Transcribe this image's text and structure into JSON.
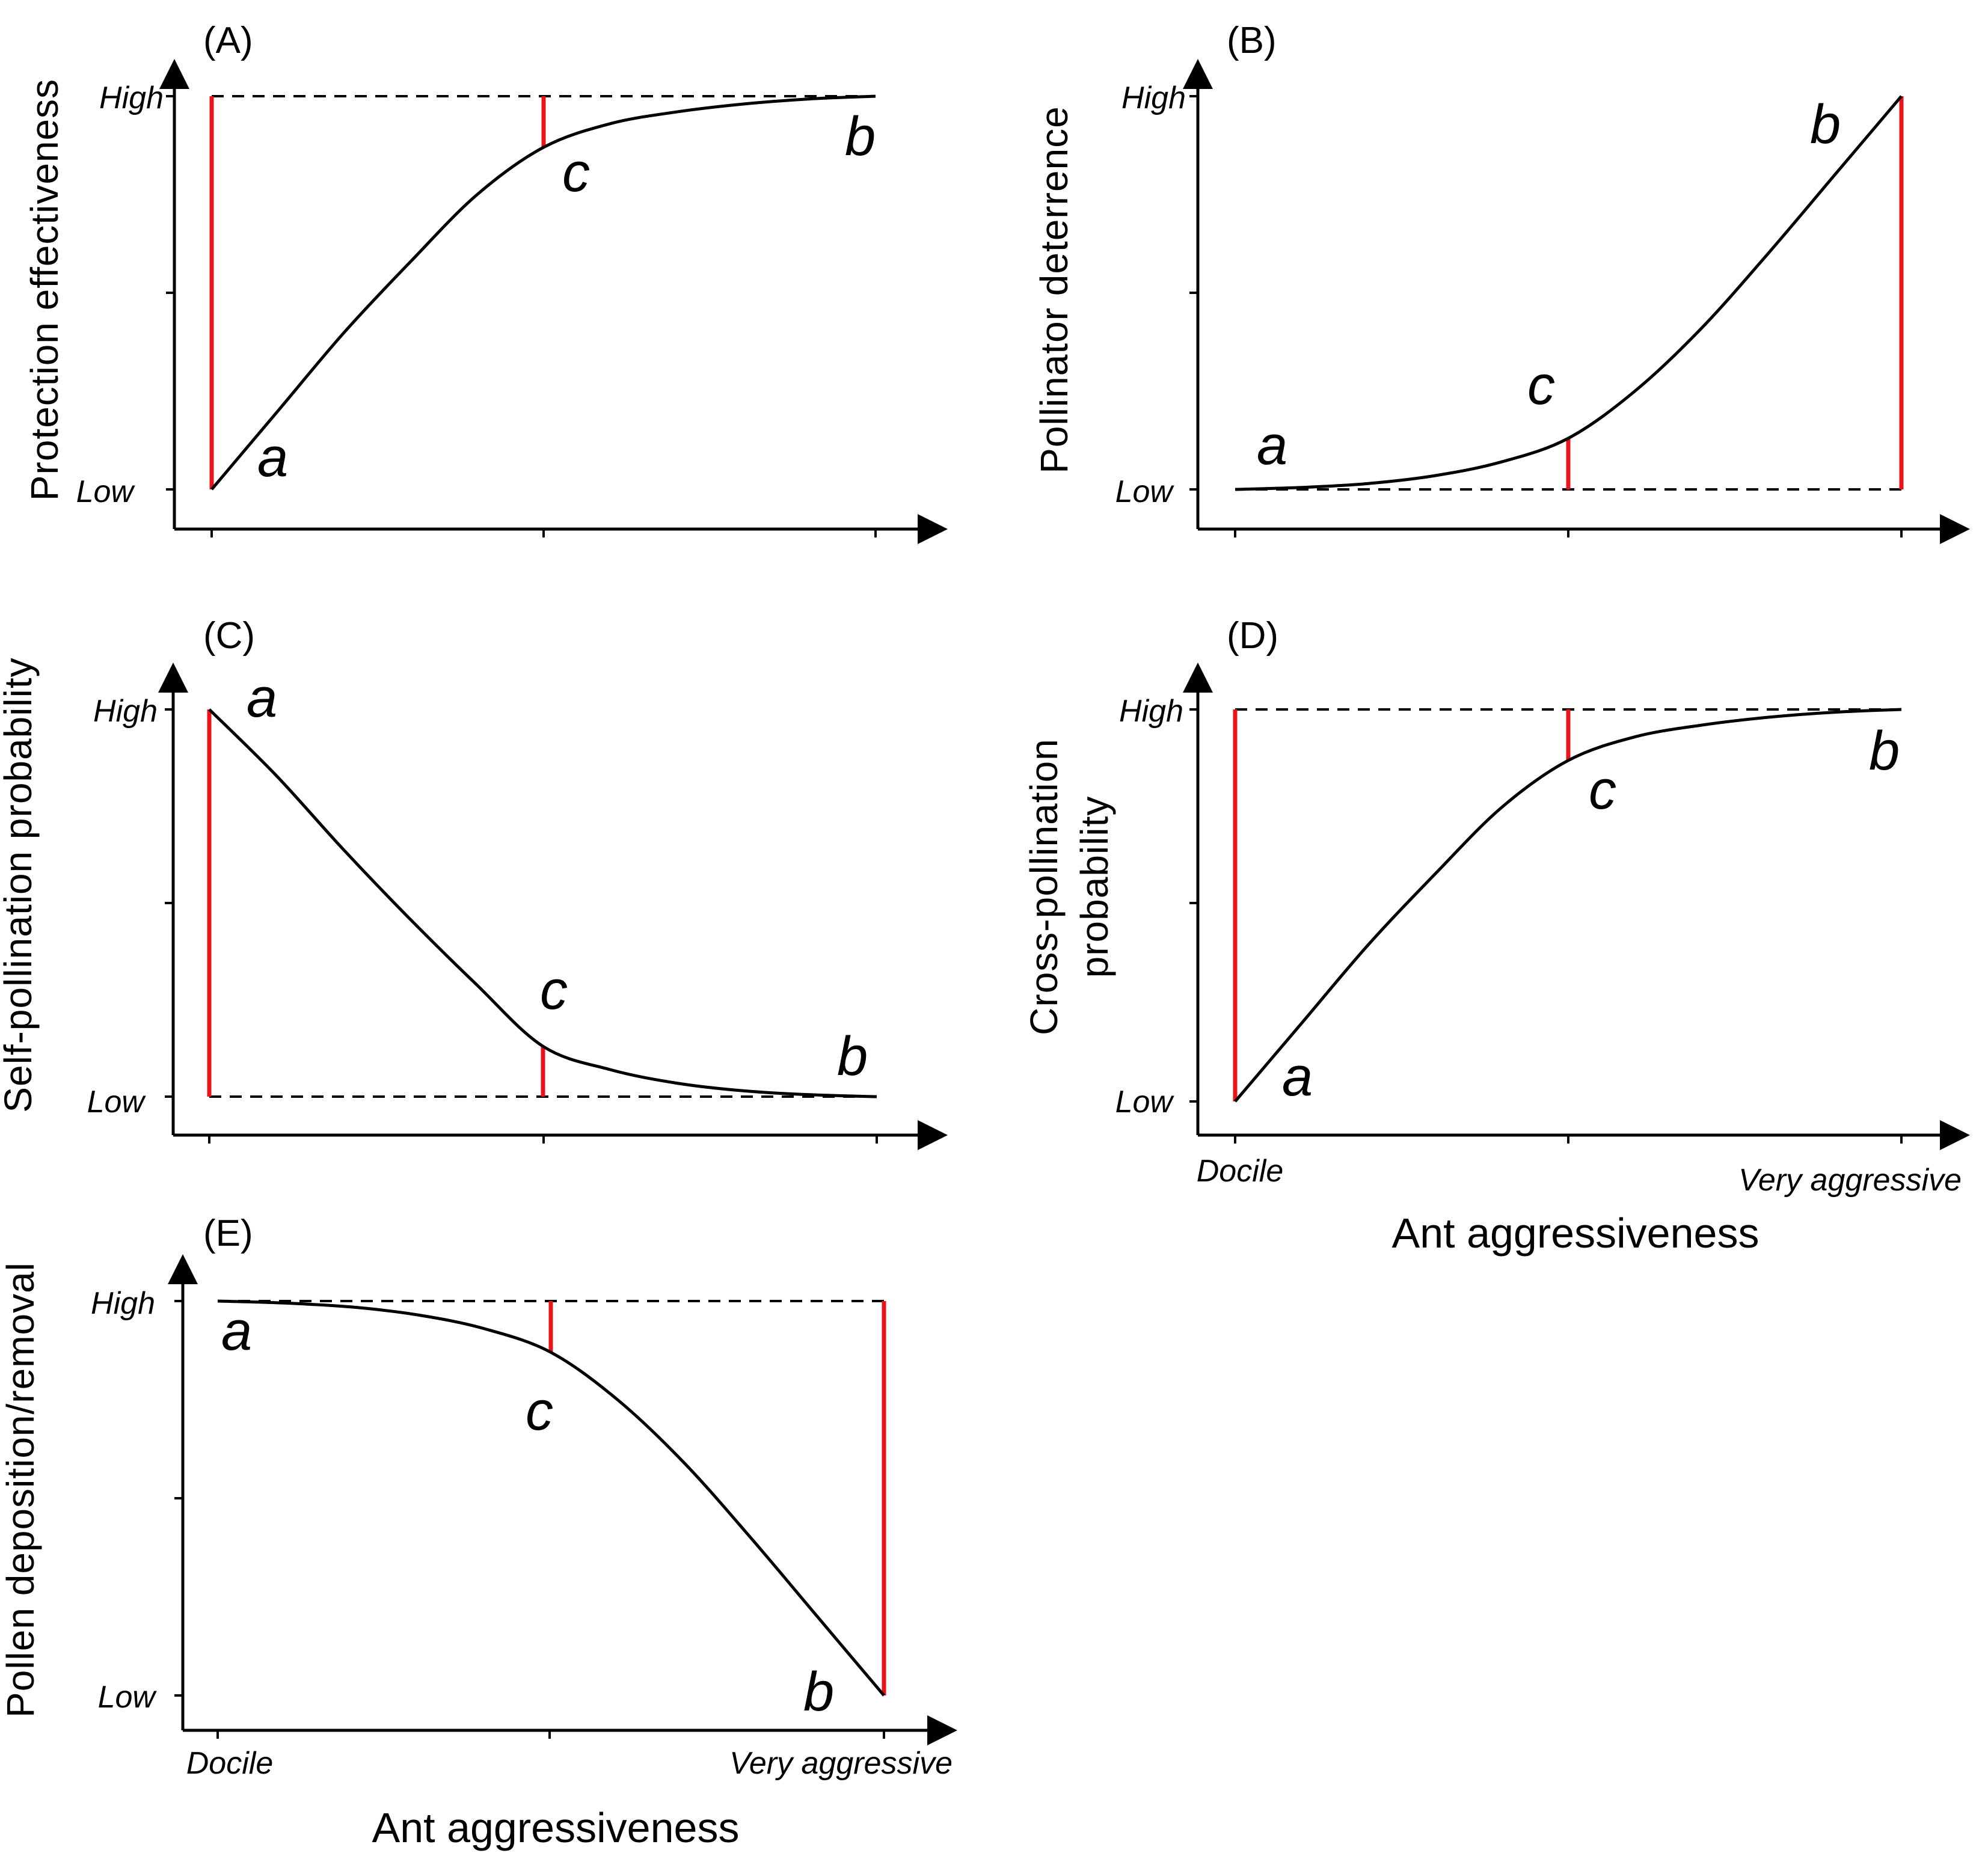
{
  "colors": {
    "axis": "#000000",
    "curve": "#000000",
    "marker": "#e8141a",
    "dashed": "#000000"
  },
  "chart_data": [
    {
      "type": "line",
      "panel_label": "(A)",
      "ylabel": "Protection effectiveness",
      "y_level_labels": {
        "low": "Low",
        "high": "High"
      },
      "xlabel": "",
      "x_tick_labels": {
        "left": "",
        "right": ""
      },
      "xlim": [
        0,
        1
      ],
      "ylim": [
        0,
        1
      ],
      "curve_shape": "saturating-increase",
      "x": [
        0.0,
        0.1,
        0.2,
        0.3,
        0.4,
        0.5,
        0.6,
        0.7,
        0.8,
        0.9,
        1.0
      ],
      "y": [
        0.0,
        0.2,
        0.4,
        0.58,
        0.75,
        0.87,
        0.93,
        0.96,
        0.98,
        0.993,
        1.0
      ],
      "reference_level": "high",
      "points": [
        {
          "name": "a",
          "x": 0.0,
          "y": 0.0
        },
        {
          "name": "c",
          "x": 0.5,
          "y": 0.87
        },
        {
          "name": "b",
          "x": 1.0,
          "y": 1.0
        }
      ],
      "red_markers": [
        {
          "x": 0.0,
          "from": 0.0,
          "to": 1.0
        },
        {
          "x": 0.5,
          "from": 0.87,
          "to": 1.0
        }
      ]
    },
    {
      "type": "line",
      "panel_label": "(B)",
      "ylabel": "Pollinator deterrence",
      "y_level_labels": {
        "low": "Low",
        "high": "High"
      },
      "xlabel": "",
      "x_tick_labels": {
        "left": "",
        "right": ""
      },
      "xlim": [
        0,
        1
      ],
      "ylim": [
        0,
        1
      ],
      "curve_shape": "accelerating-increase",
      "x": [
        0.0,
        0.1,
        0.2,
        0.3,
        0.4,
        0.5,
        0.6,
        0.7,
        0.8,
        0.9,
        1.0
      ],
      "y": [
        0.0,
        0.005,
        0.015,
        0.035,
        0.07,
        0.13,
        0.25,
        0.41,
        0.6,
        0.8,
        1.0
      ],
      "reference_level": "low",
      "points": [
        {
          "name": "a",
          "x": 0.0,
          "y": 0.0
        },
        {
          "name": "c",
          "x": 0.5,
          "y": 0.13
        },
        {
          "name": "b",
          "x": 1.0,
          "y": 1.0
        }
      ],
      "red_markers": [
        {
          "x": 0.5,
          "from": 0.0,
          "to": 0.13
        },
        {
          "x": 1.0,
          "from": 0.0,
          "to": 1.0
        }
      ]
    },
    {
      "type": "line",
      "panel_label": "(C)",
      "ylabel": "Self-pollination probability",
      "y_level_labels": {
        "low": "Low",
        "high": "High"
      },
      "xlabel": "",
      "x_tick_labels": {
        "left": "",
        "right": ""
      },
      "xlim": [
        0,
        1
      ],
      "ylim": [
        0,
        1
      ],
      "curve_shape": "decelerating-decrease",
      "x": [
        0.0,
        0.1,
        0.2,
        0.3,
        0.4,
        0.5,
        0.6,
        0.7,
        0.8,
        0.9,
        1.0
      ],
      "y": [
        1.0,
        0.83,
        0.64,
        0.46,
        0.29,
        0.13,
        0.07,
        0.035,
        0.015,
        0.005,
        0.0
      ],
      "reference_level": "low",
      "points": [
        {
          "name": "a",
          "x": 0.0,
          "y": 1.0
        },
        {
          "name": "c",
          "x": 0.5,
          "y": 0.13
        },
        {
          "name": "b",
          "x": 1.0,
          "y": 0.0
        }
      ],
      "red_markers": [
        {
          "x": 0.0,
          "from": 0.0,
          "to": 1.0
        },
        {
          "x": 0.5,
          "from": 0.0,
          "to": 0.13
        }
      ]
    },
    {
      "type": "line",
      "panel_label": "(D)",
      "ylabel": "Cross-pollination probability",
      "ylabel_lines": [
        "Cross-pollination",
        "probability"
      ],
      "y_level_labels": {
        "low": "Low",
        "high": "High"
      },
      "xlabel": "Ant aggressiveness",
      "x_tick_labels": {
        "left": "Docile",
        "right": "Very aggressive"
      },
      "xlim": [
        0,
        1
      ],
      "ylim": [
        0,
        1
      ],
      "curve_shape": "saturating-increase",
      "x": [
        0.0,
        0.1,
        0.2,
        0.3,
        0.4,
        0.5,
        0.6,
        0.7,
        0.8,
        0.9,
        1.0
      ],
      "y": [
        0.0,
        0.2,
        0.4,
        0.58,
        0.75,
        0.87,
        0.93,
        0.96,
        0.98,
        0.993,
        1.0
      ],
      "reference_level": "high",
      "points": [
        {
          "name": "a",
          "x": 0.0,
          "y": 0.0
        },
        {
          "name": "c",
          "x": 0.5,
          "y": 0.87
        },
        {
          "name": "b",
          "x": 1.0,
          "y": 1.0
        }
      ],
      "red_markers": [
        {
          "x": 0.0,
          "from": 0.0,
          "to": 1.0
        },
        {
          "x": 0.5,
          "from": 0.87,
          "to": 1.0
        }
      ]
    },
    {
      "type": "line",
      "panel_label": "(E)",
      "ylabel": "Pollen deposition/removal",
      "y_level_labels": {
        "low": "Low",
        "high": "High"
      },
      "xlabel": "Ant aggressiveness",
      "x_tick_labels": {
        "left": "Docile",
        "right": "Very aggressive"
      },
      "xlim": [
        0,
        1
      ],
      "ylim": [
        0,
        1
      ],
      "curve_shape": "accelerating-decrease",
      "x": [
        0.0,
        0.1,
        0.2,
        0.3,
        0.4,
        0.5,
        0.6,
        0.7,
        0.8,
        0.9,
        1.0
      ],
      "y": [
        1.0,
        0.995,
        0.985,
        0.965,
        0.93,
        0.87,
        0.75,
        0.59,
        0.4,
        0.2,
        0.0
      ],
      "reference_level": "high",
      "points": [
        {
          "name": "a",
          "x": 0.0,
          "y": 1.0
        },
        {
          "name": "c",
          "x": 0.5,
          "y": 0.87
        },
        {
          "name": "b",
          "x": 1.0,
          "y": 0.0
        }
      ],
      "red_markers": [
        {
          "x": 0.5,
          "from": 0.87,
          "to": 1.0
        },
        {
          "x": 1.0,
          "from": 0.0,
          "to": 1.0
        }
      ]
    }
  ]
}
